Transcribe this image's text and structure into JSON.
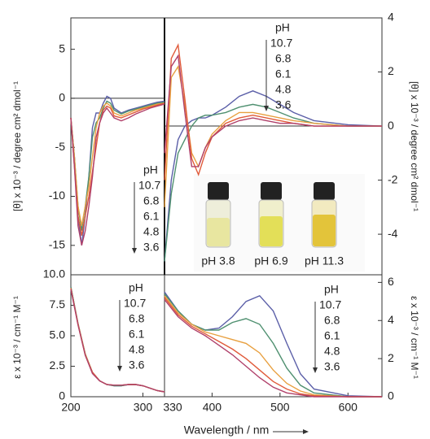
{
  "chart_data": [
    {
      "type": "line",
      "ylabel": "[θ] x 10⁻³ / degree cm² dmol⁻¹",
      "legend_title": "pH",
      "zero_line": true,
      "x": [
        200,
        205,
        210,
        215,
        220,
        225,
        230,
        235,
        240,
        245,
        250,
        255,
        260,
        270,
        280,
        290,
        300,
        310,
        320,
        330
      ],
      "xlim": [
        200,
        330
      ],
      "ylim": [
        -18,
        8.2
      ],
      "yticks": [
        -15,
        -10,
        -5,
        0,
        5
      ],
      "series": [
        {
          "name": "10.7",
          "color": "#5b5fa8",
          "values": [
            -2,
            -6,
            -12,
            -15,
            -12,
            -8,
            -3,
            -1.5,
            -1.5,
            -0.5,
            0.2,
            0,
            -1,
            -1.5,
            -1.2,
            -1,
            -0.8,
            -0.6,
            -0.4,
            -0.3
          ]
        },
        {
          "name": "6.8",
          "color": "#4f9070",
          "values": [
            -2,
            -6,
            -11,
            -13.5,
            -11,
            -8,
            -4,
            -2.5,
            -2,
            -1,
            -0.3,
            -0.5,
            -1.2,
            -1.6,
            -1.3,
            -1.1,
            -0.9,
            -0.7,
            -0.5,
            -0.4
          ]
        },
        {
          "name": "6.1",
          "color": "#e8a040",
          "values": [
            -2,
            -6,
            -11,
            -13,
            -11,
            -9,
            -6,
            -3,
            -1.5,
            -0.8,
            -0.5,
            -0.8,
            -1.5,
            -1.8,
            -1.5,
            -1.2,
            -1,
            -0.8,
            -0.6,
            -0.5
          ]
        },
        {
          "name": "4.8",
          "color": "#e05a3a",
          "values": [
            -2,
            -7,
            -12,
            -14,
            -12,
            -10,
            -7.5,
            -5,
            -2.5,
            -1.2,
            -0.8,
            -1,
            -1.8,
            -2,
            -1.7,
            -1.4,
            -1.1,
            -0.9,
            -0.7,
            -0.5
          ]
        },
        {
          "name": "3.6",
          "color": "#b0406a",
          "values": [
            -2,
            -7,
            -13,
            -15,
            -13.5,
            -11,
            -8,
            -4,
            -2.5,
            -1.5,
            -1,
            -1.5,
            -2,
            -2.3,
            -2,
            -1.6,
            -1.3,
            -1,
            -0.8,
            -0.6
          ]
        }
      ]
    },
    {
      "type": "line",
      "ylabel": "[θ] x 10⁻³ / degree cm² dmol⁻¹",
      "legend_title": "pH",
      "zero_line": true,
      "annotations": [
        "pH 3.8",
        "pH 6.9",
        "pH 11.3"
      ],
      "x": [
        330,
        340,
        350,
        360,
        370,
        380,
        390,
        400,
        420,
        440,
        460,
        480,
        500,
        520,
        550,
        600,
        650
      ],
      "xlim": [
        330,
        650
      ],
      "ylim": [
        -5.5,
        4
      ],
      "yticks": [
        -4,
        -2,
        0,
        2,
        4
      ],
      "series": [
        {
          "name": "10.7",
          "color": "#5b5fa8",
          "values": [
            -5,
            -2,
            -0.5,
            0,
            0.2,
            0.3,
            0.3,
            0.4,
            0.7,
            1.1,
            1.3,
            1.1,
            0.8,
            0.5,
            0.2,
            0.05,
            0
          ]
        },
        {
          "name": "6.8",
          "color": "#4f9070",
          "values": [
            -5,
            -2.5,
            -1,
            -0.5,
            0,
            0.3,
            0.4,
            0.4,
            0.5,
            0.7,
            0.8,
            0.7,
            0.5,
            0.3,
            0.1,
            0,
            0
          ]
        },
        {
          "name": "6.1",
          "color": "#e8a040",
          "values": [
            -3,
            1.8,
            2.2,
            0.8,
            -1,
            -1.5,
            -0.8,
            -0.3,
            0.2,
            0.5,
            0.5,
            0.4,
            0.3,
            0.2,
            0.1,
            0,
            0
          ]
        },
        {
          "name": "4.8",
          "color": "#e05a3a",
          "values": [
            -2,
            2.5,
            3,
            1,
            -1.2,
            -1.8,
            -1,
            -0.4,
            0.1,
            0.3,
            0.4,
            0.3,
            0.2,
            0.1,
            0,
            0,
            0
          ]
        },
        {
          "name": "3.6",
          "color": "#b0406a",
          "values": [
            -1,
            2.2,
            2.6,
            0.5,
            -1.5,
            -1.5,
            -0.8,
            -0.4,
            0,
            0.2,
            0.3,
            0.2,
            0.1,
            0.1,
            0,
            0,
            0
          ]
        }
      ]
    },
    {
      "type": "line",
      "ylabel": "ε x 10⁻³ / cm⁻¹ M⁻¹",
      "legend_title": "pH",
      "x": [
        200,
        210,
        220,
        230,
        240,
        250,
        260,
        270,
        280,
        290,
        300,
        310,
        320,
        330
      ],
      "xlim": [
        200,
        330
      ],
      "ylim": [
        0,
        10
      ],
      "xticks": [
        200,
        300
      ],
      "yticks": [
        0,
        2.5,
        {
          "value": 5,
          "label": "5.0"
        },
        7.5,
        {
          "value": 10,
          "label": "10.0"
        }
      ],
      "series": [
        {
          "name": "10.7",
          "color": "#5b5fa8",
          "values": [
            9,
            6,
            3.5,
            2,
            1.3,
            1,
            0.9,
            0.9,
            1,
            1,
            0.9,
            0.7,
            0.5,
            0.4
          ]
        },
        {
          "name": "6.8",
          "color": "#4f9070",
          "values": [
            9,
            6,
            3.5,
            2,
            1.3,
            1,
            0.9,
            0.9,
            1,
            1,
            0.9,
            0.7,
            0.5,
            0.4
          ]
        },
        {
          "name": "6.1",
          "color": "#e8a040",
          "values": [
            8.9,
            6,
            3.5,
            2,
            1.3,
            1,
            0.95,
            0.95,
            1,
            1,
            0.9,
            0.7,
            0.5,
            0.4
          ]
        },
        {
          "name": "4.8",
          "color": "#e05a3a",
          "values": [
            8.9,
            5.9,
            3.4,
            2,
            1.3,
            1,
            0.95,
            0.95,
            1,
            1,
            0.9,
            0.7,
            0.5,
            0.4
          ]
        },
        {
          "name": "3.6",
          "color": "#b0406a",
          "values": [
            8.8,
            5.9,
            3.4,
            1.9,
            1.3,
            1,
            0.95,
            0.95,
            1,
            1,
            0.9,
            0.7,
            0.5,
            0.4
          ]
        }
      ]
    },
    {
      "type": "line",
      "ylabel": "ε x 10⁻³ / cm⁻¹ M⁻¹",
      "legend_title": "pH",
      "xlabel": "Wavelength / nm",
      "x": [
        330,
        350,
        370,
        390,
        410,
        430,
        450,
        470,
        490,
        510,
        530,
        550,
        600,
        650
      ],
      "xlim": [
        330,
        650
      ],
      "ylim": [
        0,
        6.4
      ],
      "xticks": [
        330,
        400,
        500,
        600
      ],
      "yticks": [
        0,
        2,
        4,
        6
      ],
      "series": [
        {
          "name": "10.7",
          "color": "#5b5fa8",
          "values": [
            5.5,
            4.5,
            3.8,
            3.5,
            3.6,
            4.2,
            5,
            5.3,
            4.5,
            2.8,
            1.2,
            0.4,
            0.05,
            0
          ]
        },
        {
          "name": "6.8",
          "color": "#4f9070",
          "values": [
            5.4,
            4.5,
            3.8,
            3.5,
            3.5,
            3.9,
            4.1,
            3.8,
            2.8,
            1.5,
            0.6,
            0.2,
            0,
            0
          ]
        },
        {
          "name": "6.1",
          "color": "#e8a040",
          "values": [
            5.3,
            4.4,
            3.8,
            3.4,
            3.2,
            3,
            2.8,
            2.3,
            1.4,
            0.7,
            0.3,
            0.1,
            0,
            0
          ]
        },
        {
          "name": "4.8",
          "color": "#e05a3a",
          "values": [
            5.2,
            4.3,
            3.7,
            3.3,
            2.9,
            2.5,
            2,
            1.4,
            0.8,
            0.4,
            0.15,
            0.05,
            0,
            0
          ]
        },
        {
          "name": "3.6",
          "color": "#b0406a",
          "values": [
            5.1,
            4.2,
            3.6,
            3.2,
            2.7,
            2.2,
            1.6,
            1,
            0.5,
            0.2,
            0.1,
            0,
            0,
            0
          ]
        }
      ]
    }
  ]
}
